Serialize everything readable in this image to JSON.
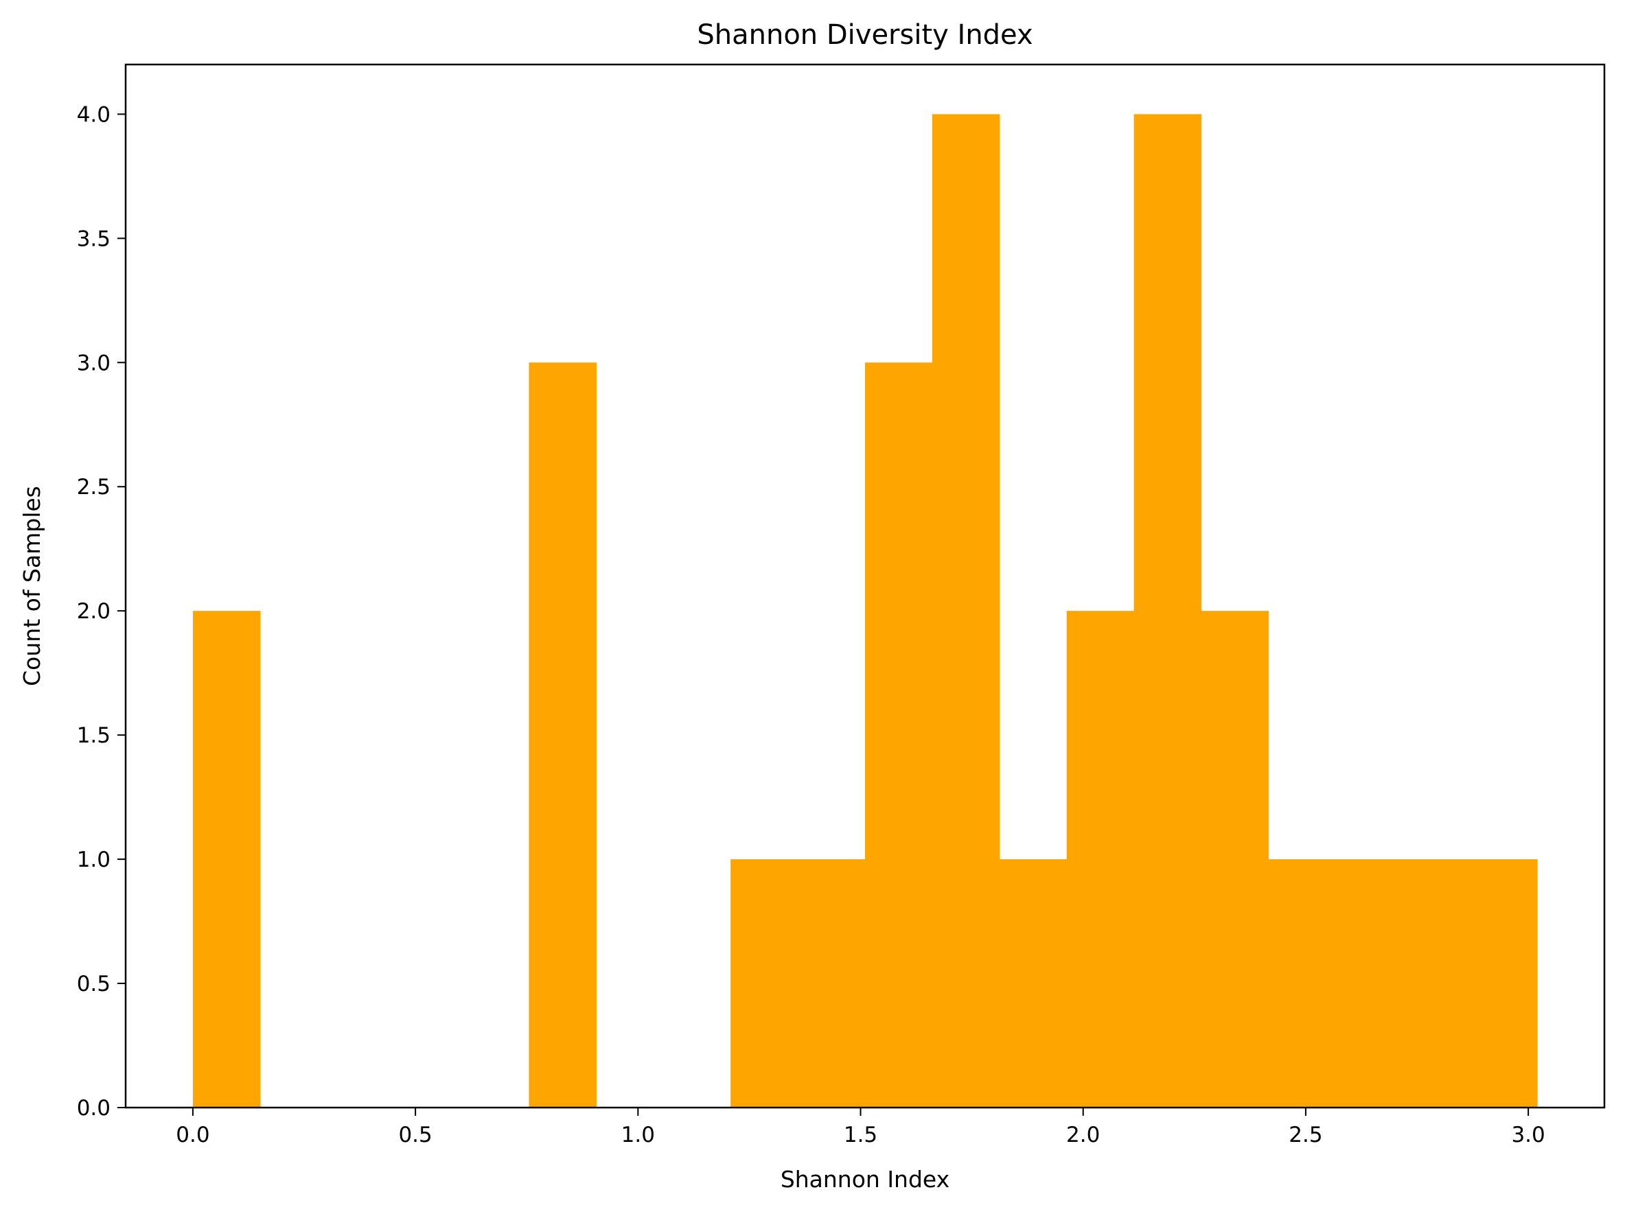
{
  "chart_data": {
    "type": "bar",
    "title": "Shannon Diversity Index",
    "xlabel": "Shannon Index",
    "ylabel": "Count of Samples",
    "bar_color": "#FFA500",
    "bins": {
      "start": 0.0,
      "width": 0.151,
      "counts": [
        2,
        0,
        0,
        0,
        0,
        3,
        0,
        0,
        1,
        1,
        3,
        4,
        1,
        2,
        4,
        2,
        1,
        1,
        1,
        1
      ]
    },
    "xlim": [
      -0.151,
      3.171
    ],
    "ylim": [
      0,
      4.2
    ],
    "xticks": [
      0.0,
      0.5,
      1.0,
      1.5,
      2.0,
      2.5,
      3.0
    ],
    "xtick_labels": [
      "0.0",
      "0.5",
      "1.0",
      "1.5",
      "2.0",
      "2.5",
      "3.0"
    ],
    "yticks": [
      0.0,
      0.5,
      1.0,
      1.5,
      2.0,
      2.5,
      3.0,
      3.5,
      4.0
    ],
    "ytick_labels": [
      "0.0",
      "0.5",
      "1.0",
      "1.5",
      "2.0",
      "2.5",
      "3.0",
      "3.5",
      "4.0"
    ],
    "grid": false,
    "legend": "none"
  }
}
